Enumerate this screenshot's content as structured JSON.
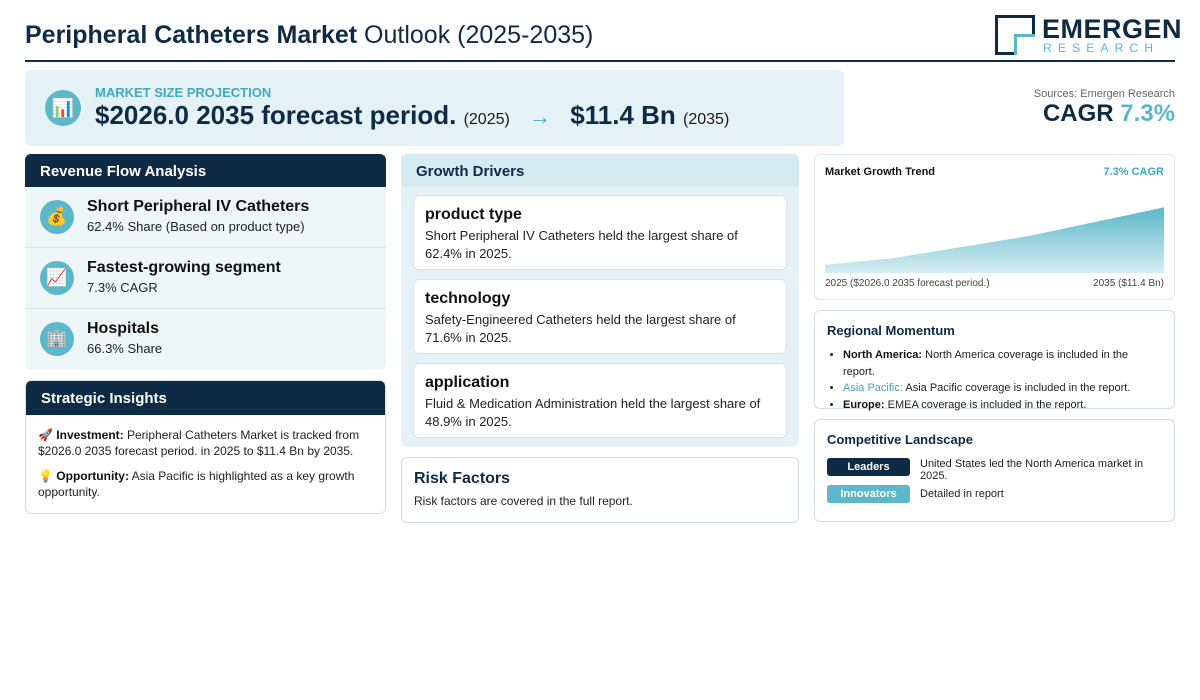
{
  "header": {
    "title_bold": "Peripheral Catheters Market",
    "title_rest": "Outlook (2025-2035)",
    "logo_name": "EMERGEN",
    "logo_sub": "RESEARCH"
  },
  "projection": {
    "label": "MARKET SIZE PROJECTION",
    "start_value": "$2026.0 2035 forecast period.",
    "start_year": "(2025)",
    "arrow": "→",
    "end_value": "$11.4 Bn",
    "end_year": "(2035)",
    "icon": "chart-icon"
  },
  "summary": {
    "sources": "Sources: Emergen Research",
    "cagr_label": "CAGR",
    "cagr_value": "7.3%"
  },
  "revenue_flow": {
    "title": "Revenue Flow Analysis",
    "items": [
      {
        "icon": "money-bag-icon",
        "title": "Short Peripheral IV Catheters",
        "sub": "62.4% Share (Based on product type)"
      },
      {
        "icon": "trend-up-icon",
        "title": "Fastest-growing segment",
        "sub": "7.3% CAGR"
      },
      {
        "icon": "building-icon",
        "title": "Hospitals",
        "sub": "66.3% Share"
      }
    ]
  },
  "strategic": {
    "title": "Strategic Insights",
    "investment_label": "Investment:",
    "investment_text": "Peripheral Catheters Market is tracked from $2026.0 2035 forecast period. in 2025 to $11.4 Bn by 2035.",
    "opportunity_label": "Opportunity:",
    "opportunity_text": "Asia Pacific is highlighted as a key growth opportunity."
  },
  "drivers": {
    "title": "Growth Drivers",
    "items": [
      {
        "title": "product type",
        "text": "Short Peripheral IV Catheters held the largest share of 62.4% in 2025."
      },
      {
        "title": "technology",
        "text": "Safety-Engineered Catheters held the largest share of 71.6% in 2025."
      },
      {
        "title": "application",
        "text": "Fluid & Medication Administration held the largest share of 48.9% in 2025."
      }
    ]
  },
  "risk": {
    "title": "Risk Factors",
    "text": "Risk factors are covered in the full report."
  },
  "trend": {
    "title": "Market Growth Trend",
    "cagr": "7.3% CAGR",
    "left_label": "2025 ($2026.0 2035 forecast period.)",
    "right_label": "2035 ($11.4 Bn)",
    "colors": {
      "fill_top": "#5bb7c9",
      "fill_bottom": "#d6eef3"
    }
  },
  "chart_data": {
    "type": "area",
    "x": [
      2025,
      2027,
      2031,
      2035
    ],
    "values": [
      0.1,
      0.18,
      0.45,
      0.8
    ],
    "title": "Market Growth Trend",
    "xlabel": "",
    "ylabel": "",
    "ylim": [
      0,
      1
    ]
  },
  "regional": {
    "title": "Regional Momentum",
    "items": [
      {
        "name": "North America:",
        "text": "North America coverage is included in the report."
      },
      {
        "name": "Asia Pacific:",
        "text": "Asia Pacific coverage is included in the report."
      },
      {
        "name": "Europe:",
        "text": "EMEA coverage is included in the report."
      }
    ]
  },
  "competitive": {
    "title": "Competitive Landscape",
    "rows": [
      {
        "badge": "Leaders",
        "text": "United States led the North America market in 2025."
      },
      {
        "badge": "Innovators",
        "text": "Detailed in report"
      }
    ]
  }
}
